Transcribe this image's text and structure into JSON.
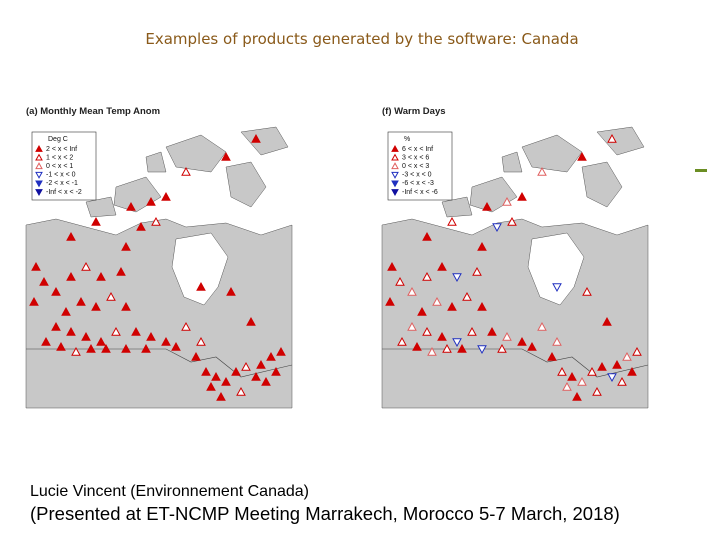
{
  "title": "Examples of products generated by the software: Canada",
  "panels": [
    {
      "title": "(a) Monthly Mean Temp Anom",
      "legend": {
        "heading": "Deg C",
        "items": [
          "2 < x < Inf",
          "1 < x < 2",
          "0 < x < 1",
          "-1 < x < 0",
          "-2 < x < -1",
          "-Inf < x < -2"
        ]
      }
    },
    {
      "title": "(f) Warm Days",
      "legend": {
        "heading": "%",
        "items": [
          "6 < x < Inf",
          "3 < x < 6",
          "0 < x < 3",
          "-3 < x < 0",
          "-6 < x < -3",
          "-Inf < x < -6"
        ]
      }
    }
  ],
  "credit": {
    "line1": "Lucie Vincent (Environnement Canada)",
    "line2": "(Presented at ET-NCMP Meeting Marrakech, Morocco 5-7 March, 2018)"
  }
}
